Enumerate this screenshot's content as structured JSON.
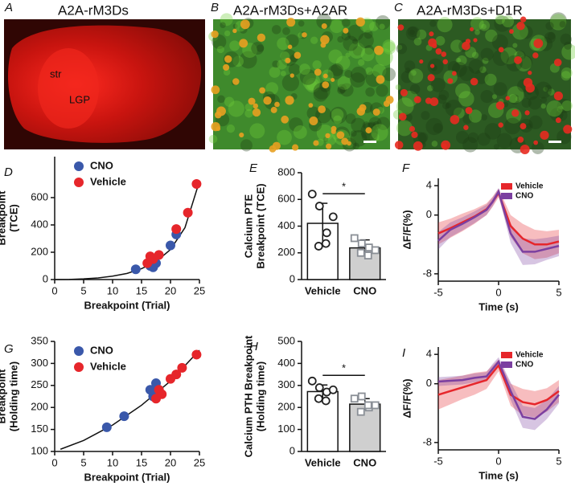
{
  "panels": [
    {
      "label": "A",
      "title": "A2A-rM3Ds",
      "annotations": [
        "str",
        "LGP"
      ]
    },
    {
      "label": "B",
      "title": "A2A-rM3Ds+A2AR"
    },
    {
      "label": "C",
      "title": "A2A-rM3Ds+D1R"
    }
  ],
  "chart_data": [
    {
      "type": "scatter",
      "label": "D",
      "xlabel": "Breakpoint (Trial)",
      "ylabel": [
        "Breakpoint",
        "(TCE)"
      ],
      "xlim": [
        0,
        25
      ],
      "xticks": [
        0,
        5,
        10,
        15,
        20,
        25
      ],
      "ylim": [
        0,
        900
      ],
      "yticks": [
        0,
        200,
        400,
        600
      ],
      "series": [
        {
          "name": "CNO",
          "color": "#3a58aa",
          "x": [
            14,
            16.5,
            17,
            17.5,
            20,
            21
          ],
          "values": [
            75,
            100,
            90,
            120,
            250,
            330
          ]
        },
        {
          "name": "Vehicle",
          "color": "#e6262b",
          "x": [
            16,
            16.5,
            17,
            18,
            21,
            23,
            24.5
          ],
          "values": [
            120,
            170,
            150,
            180,
            370,
            490,
            700
          ]
        }
      ],
      "fit": {
        "x": [
          0,
          2.5,
          5,
          7.5,
          10,
          12.5,
          15,
          17.5,
          20,
          22.5,
          25
        ],
        "values": [
          0,
          1,
          5,
          12,
          25,
          45,
          80,
          130,
          220,
          380,
          720
        ]
      }
    },
    {
      "type": "bar",
      "label": "E",
      "ylabel": [
        "Calcium PTE",
        "Breakpoint (TCE)"
      ],
      "categories": [
        "Vehicle",
        "CNO"
      ],
      "values": [
        421,
        237
      ],
      "errors": [
        150,
        60
      ],
      "colors": [
        "#ffffff",
        "#cfcfcf"
      ],
      "points": [
        [
          640,
          550,
          350,
          250,
          270,
          470
        ],
        [
          310,
          270,
          240,
          200,
          180,
          220
        ]
      ],
      "point_colors": [
        "#222222",
        "#8a8f96"
      ],
      "ylim": [
        0,
        800
      ],
      "yticks": [
        0,
        200,
        400,
        600,
        800
      ],
      "annotation": "*"
    },
    {
      "type": "line",
      "label": "F",
      "xlabel": "Time (s)",
      "ylabel": [
        "ΔF/F(%)"
      ],
      "xlim": [
        -5,
        5
      ],
      "xticks": [
        -5,
        0,
        5
      ],
      "ylim": [
        -9,
        5
      ],
      "yticks": [
        4,
        0,
        -8
      ],
      "x": [
        -5,
        -4,
        -3,
        -2,
        -1,
        -0.5,
        0,
        1,
        2,
        3,
        4,
        5
      ],
      "series": [
        {
          "name": "Vehicle",
          "color": "#e6262b",
          "values": [
            -2.5,
            -1.8,
            -1,
            -0.2,
            0.8,
            1.8,
            3,
            -1.5,
            -3.2,
            -4,
            -4,
            -3.6
          ],
          "errors": [
            1.5,
            1.3,
            1.2,
            1,
            0.8,
            0.7,
            0.6,
            1.5,
            2,
            2,
            1.8,
            1.6
          ]
        },
        {
          "name": "CNO",
          "color": "#7b3fa0",
          "values": [
            -3.5,
            -2,
            -1.2,
            -0.3,
            0.7,
            1.8,
            3.2,
            -2.5,
            -5,
            -5,
            -4.6,
            -4.2
          ],
          "errors": [
            1.2,
            1,
            0.9,
            0.8,
            0.7,
            0.6,
            0.5,
            1.3,
            1.8,
            1.7,
            1.5,
            1.4
          ]
        }
      ]
    },
    {
      "type": "scatter",
      "label": "G",
      "xlabel": "Breakpoint (Trial)",
      "ylabel": [
        "Breakpoint",
        "(Holding time)"
      ],
      "xlim": [
        0,
        25
      ],
      "xticks": [
        0,
        5,
        10,
        15,
        20,
        25
      ],
      "ylim": [
        100,
        350
      ],
      "yticks": [
        100,
        150,
        200,
        250,
        300,
        350
      ],
      "series": [
        {
          "name": "CNO",
          "color": "#3a58aa",
          "x": [
            9,
            12,
            16.5,
            17,
            17.5,
            18
          ],
          "values": [
            155,
            180,
            240,
            225,
            255,
            240
          ]
        },
        {
          "name": "Vehicle",
          "color": "#e6262b",
          "x": [
            17.5,
            18,
            18.5,
            20,
            21,
            22,
            24.5
          ],
          "values": [
            220,
            240,
            230,
            265,
            275,
            290,
            320
          ]
        }
      ],
      "fit": {
        "x": [
          1,
          5,
          10,
          15,
          20,
          25
        ],
        "values": [
          105,
          125,
          160,
          205,
          260,
          330
        ]
      }
    },
    {
      "type": "bar",
      "label": "H",
      "ylabel": [
        "Calcium PTH Breakpoint",
        "(Holding time)"
      ],
      "categories": [
        "Vehicle",
        "CNO"
      ],
      "values": [
        272,
        215
      ],
      "errors": [
        30,
        25
      ],
      "colors": [
        "#ffffff",
        "#cfcfcf"
      ],
      "points": [
        [
          320,
          290,
          270,
          240,
          230,
          280
        ],
        [
          240,
          250,
          200,
          180,
          210,
          210
        ]
      ],
      "point_colors": [
        "#222222",
        "#8a8f96"
      ],
      "ylim": [
        0,
        500
      ],
      "yticks": [
        0,
        100,
        200,
        300,
        400,
        500
      ],
      "annotation": "*"
    },
    {
      "type": "line",
      "label": "I",
      "xlabel": "Time (s)",
      "ylabel": [
        "ΔF/F(%)"
      ],
      "xlim": [
        -5,
        5
      ],
      "xticks": [
        -5,
        0,
        5
      ],
      "ylim": [
        -9,
        5
      ],
      "yticks": [
        4,
        0,
        -8
      ],
      "x": [
        -5,
        -4,
        -3,
        -2,
        -1,
        -0.5,
        0,
        1,
        2,
        3,
        4,
        5
      ],
      "series": [
        {
          "name": "Vehicle",
          "color": "#e6262b",
          "values": [
            -1.5,
            -1,
            -0.5,
            0,
            0.5,
            1.5,
            2.5,
            -1.5,
            -2.5,
            -2.8,
            -2.2,
            -1
          ],
          "errors": [
            2,
            1.8,
            1.6,
            1.5,
            1.2,
            1,
            0.8,
            1.5,
            1.8,
            1.8,
            1.6,
            1.5
          ]
        },
        {
          "name": "CNO",
          "color": "#7b3fa0",
          "values": [
            0.3,
            0.4,
            0.5,
            0.8,
            1,
            2,
            3,
            -1,
            -4.5,
            -4.8,
            -3.5,
            -1.5
          ],
          "errors": [
            0.6,
            0.6,
            0.6,
            0.6,
            0.6,
            0.7,
            0.6,
            1.2,
            1.5,
            1.5,
            1.3,
            1.2
          ]
        }
      ]
    }
  ]
}
